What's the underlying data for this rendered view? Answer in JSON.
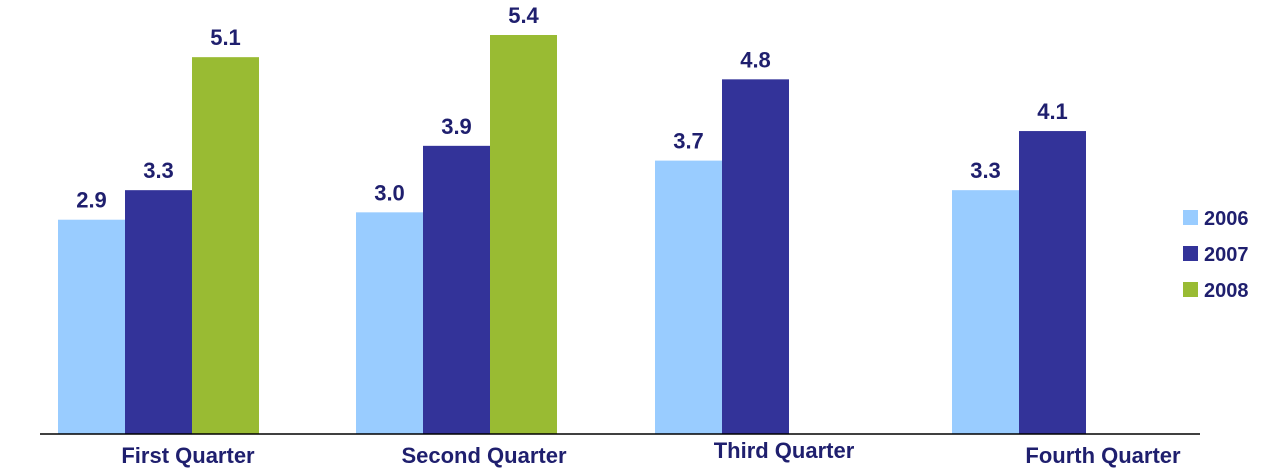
{
  "chart_data": {
    "type": "bar",
    "categories": [
      "First Quarter",
      "Second Quarter",
      "Third Quarter",
      "Fourth Quarter"
    ],
    "series": [
      {
        "name": "2006",
        "color": "#99ccff",
        "values": [
          2.9,
          3.0,
          3.7,
          3.3
        ]
      },
      {
        "name": "2007",
        "color": "#333399",
        "values": [
          3.3,
          3.9,
          4.8,
          4.1
        ]
      },
      {
        "name": "2008",
        "color": "#99bb33",
        "values": [
          5.1,
          5.4,
          null,
          null
        ]
      }
    ],
    "data_labels": [
      [
        "2.9",
        "3.0",
        "3.7",
        "3.3"
      ],
      [
        "3.3",
        "3.9",
        "4.8",
        "4.1"
      ],
      [
        "5.1",
        "5.4",
        "",
        ""
      ]
    ],
    "title": "",
    "xlabel": "",
    "ylabel": "",
    "ylim": [
      0,
      5.4
    ],
    "grid": false,
    "legend": "right"
  }
}
